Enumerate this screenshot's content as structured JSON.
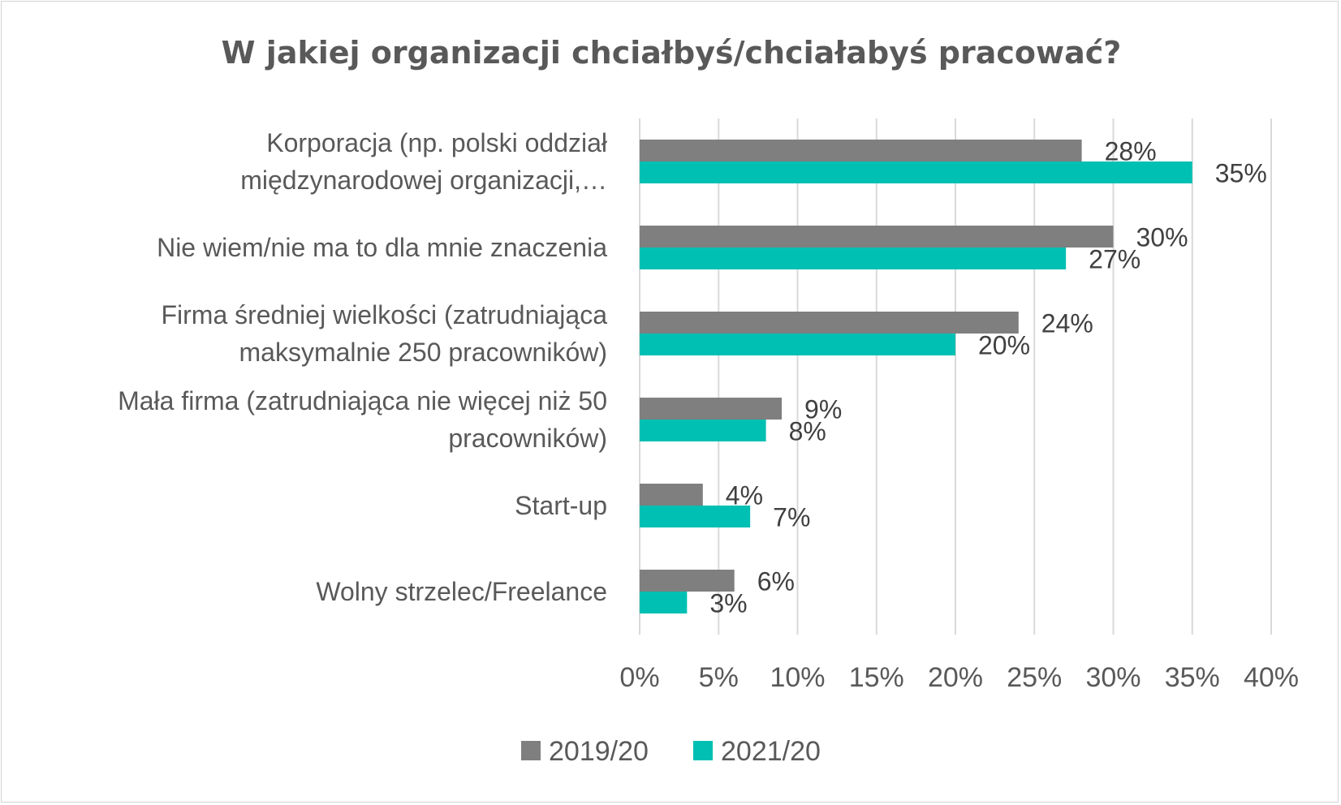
{
  "chart_data": {
    "type": "bar",
    "orientation": "horizontal",
    "title": "W jakiej organizacji chciałbyś/chciałabyś pracować?",
    "categories": [
      [
        "Korporacja (np. polski oddział",
        "międzynarodowej organizacji,…"
      ],
      [
        "Nie wiem/nie ma to dla mnie znaczenia"
      ],
      [
        "Firma średniej wielkości (zatrudniająca",
        "maksymalnie 250 pracowników)"
      ],
      [
        "Mała firma (zatrudniająca nie więcej niż 50",
        "pracowników)"
      ],
      [
        "Start-up"
      ],
      [
        "Wolny strzelec/Freelance"
      ]
    ],
    "series": [
      {
        "name": "2019/20",
        "color": "#7f7f7f",
        "values": [
          28,
          30,
          24,
          9,
          4,
          6
        ],
        "labels": [
          "28%",
          "30%",
          "24%",
          "9%",
          "4%",
          "6%"
        ]
      },
      {
        "name": "2021/20",
        "color": "#00bfb3",
        "values": [
          35,
          27,
          20,
          8,
          7,
          3
        ],
        "labels": [
          "35%",
          "27%",
          "20%",
          "8%",
          "7%",
          "3%"
        ]
      }
    ],
    "x_ticks": [
      "0%",
      "5%",
      "10%",
      "15%",
      "20%",
      "25%",
      "30%",
      "35%",
      "40%"
    ],
    "xlim": [
      0,
      40
    ],
    "grid": true,
    "legend_position": "bottom"
  }
}
